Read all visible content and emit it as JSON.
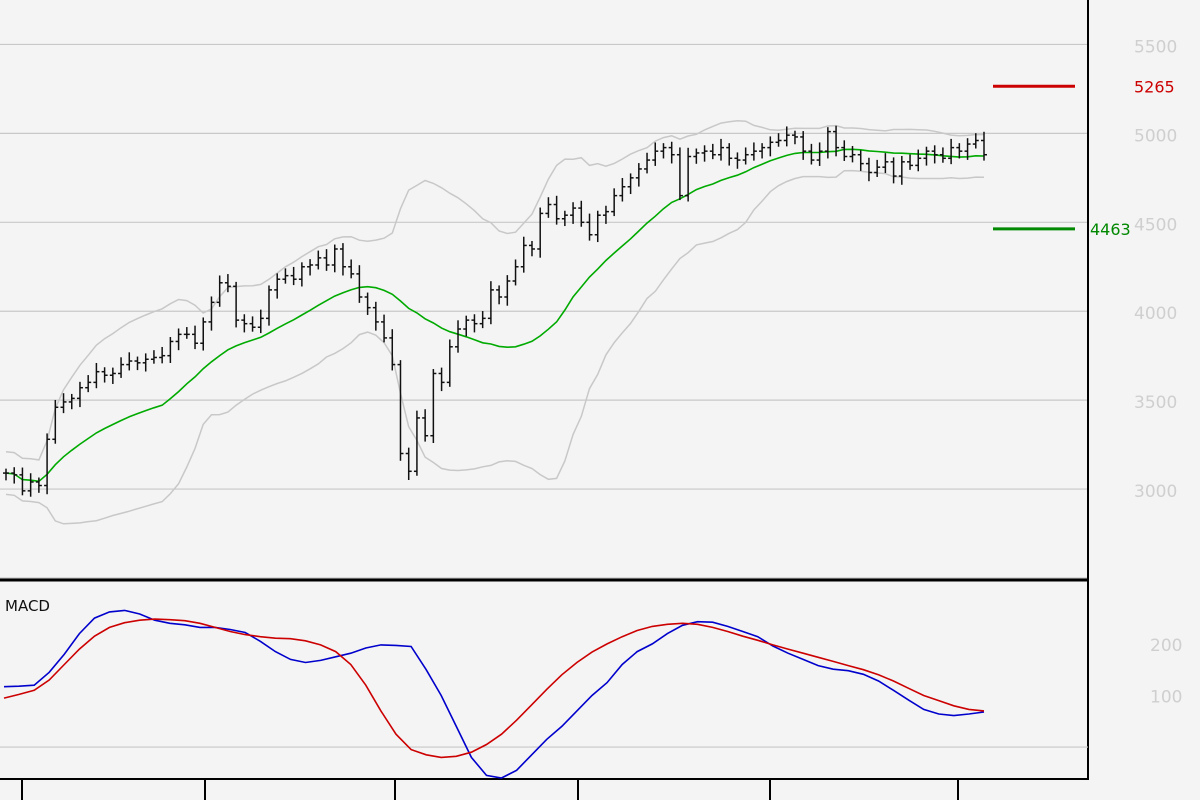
{
  "chart_data": [
    {
      "type": "ohlc",
      "title": "",
      "xlabel": "",
      "ylabel": "",
      "ylim": [
        2500,
        5750
      ],
      "yticks": [
        3000,
        3500,
        4000,
        4500,
        5000,
        5500
      ],
      "ytick_labels": [
        "3000",
        "3500",
        "4000",
        "4500",
        "5000",
        "5500"
      ],
      "grid": true,
      "levels": [
        {
          "value": 5265,
          "label": "5265",
          "color": "#cc0000"
        },
        {
          "value": 4463,
          "label": "4463",
          "color": "#008800"
        }
      ],
      "series": [
        {
          "kind": "close",
          "values": [
            3090,
            3080,
            2990,
            3040,
            3020,
            3280,
            3460,
            3490,
            3510,
            3570,
            3600,
            3660,
            3640,
            3650,
            3700,
            3720,
            3710,
            3730,
            3740,
            3750,
            3830,
            3870,
            3870,
            3820,
            3940,
            4050,
            4160,
            4140,
            3950,
            3930,
            3910,
            3960,
            4120,
            4180,
            4200,
            4180,
            4250,
            4260,
            4300,
            4260,
            4350,
            4250,
            4210,
            4080,
            4020,
            3940,
            3850,
            3700,
            3200,
            3100,
            3400,
            3300,
            3650,
            3600,
            3800,
            3900,
            3950,
            3930,
            3960,
            4120,
            4080,
            4170,
            4250,
            4370,
            4350,
            4550,
            4600,
            4520,
            4540,
            4580,
            4500,
            4430,
            4540,
            4560,
            4650,
            4700,
            4750,
            4800,
            4850,
            4900,
            4920,
            4880,
            4650,
            4870,
            4890,
            4900,
            4880,
            4920,
            4860,
            4850,
            4880,
            4900,
            4920,
            4950,
            4960,
            4990,
            4980,
            4900,
            4850,
            4900,
            5010,
            4920,
            4870,
            4880,
            4830,
            4780,
            4810,
            4840,
            4760,
            4840,
            4820,
            4860,
            4900,
            4880,
            4860,
            4920,
            4900,
            4940,
            4960,
            4880
          ]
        }
      ],
      "overlays": [
        {
          "name": "moving average",
          "color": "#00aa00",
          "from_index": 0,
          "window": 20
        },
        {
          "name": "upper band",
          "color": "#c8c8c8",
          "from_index": 0,
          "window": 20,
          "k": 2
        },
        {
          "name": "lower band",
          "color": "#c8c8c8",
          "from_index": 0,
          "window": 20,
          "k": -2
        }
      ]
    },
    {
      "type": "line",
      "title": "MACD",
      "xlabel": "",
      "ylabel": "",
      "ylim": [
        -60,
        320
      ],
      "yticks": [
        100,
        200
      ],
      "ytick_labels": [
        "100",
        "200"
      ],
      "zero_line": 0,
      "series": [
        {
          "color": "#0000cc",
          "values": [
            117,
            118,
            120,
            145,
            180,
            220,
            250,
            262,
            265,
            258,
            246,
            240,
            237,
            232,
            232,
            228,
            222,
            205,
            185,
            170,
            164,
            168,
            175,
            182,
            192,
            198,
            197,
            195,
            150,
            100,
            40,
            -20,
            -55,
            -60,
            -45,
            -15,
            15,
            40,
            70,
            100,
            125,
            160,
            185,
            200,
            220,
            236,
            243,
            242,
            234,
            224,
            214,
            196,
            182,
            170,
            158,
            151,
            148,
            141,
            128,
            110,
            91,
            73,
            64,
            61,
            64,
            68
          ]
        },
        {
          "color": "#cc0000",
          "values": [
            95,
            102,
            110,
            130,
            160,
            190,
            215,
            232,
            241,
            246,
            248,
            247,
            245,
            240,
            232,
            224,
            218,
            214,
            211,
            210,
            206,
            198,
            185,
            160,
            120,
            70,
            25,
            -5,
            -15,
            -20,
            -18,
            -10,
            5,
            25,
            52,
            82,
            112,
            140,
            164,
            184,
            200,
            214,
            226,
            234,
            238,
            240,
            238,
            232,
            224,
            215,
            207,
            198,
            190,
            182,
            174,
            166,
            158,
            150,
            140,
            128,
            114,
            100,
            90,
            80,
            73,
            70
          ]
        }
      ]
    }
  ]
}
